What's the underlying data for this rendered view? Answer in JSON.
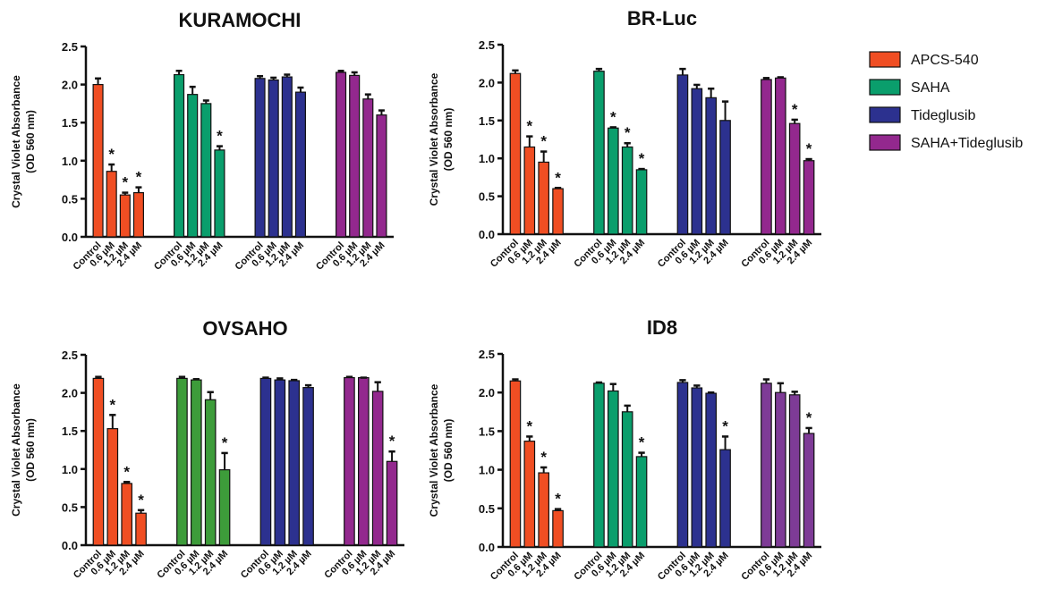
{
  "chart_data": [
    {
      "type": "bar",
      "title": "KURAMOCHI",
      "ylabel_line1": "Crystal Violet Absorbance",
      "ylabel_line2": "(OD 560 nm)",
      "ylim": [
        0,
        2.5
      ],
      "yticks": [
        "0.0",
        "0.5",
        "1.0",
        "1.5",
        "2.0",
        "2.5"
      ],
      "categories": [
        "Control",
        "0.6 µM",
        "1.2 µM",
        "2.4 µM"
      ],
      "series": [
        {
          "name": "APCS-540",
          "values": [
            2.0,
            0.86,
            0.55,
            0.58
          ],
          "errors": [
            0.08,
            0.09,
            0.03,
            0.07
          ],
          "significant": [
            false,
            true,
            true,
            true
          ]
        },
        {
          "name": "SAHA",
          "values": [
            2.13,
            1.87,
            1.75,
            1.14
          ],
          "errors": [
            0.05,
            0.1,
            0.04,
            0.05
          ],
          "significant": [
            false,
            false,
            false,
            true
          ]
        },
        {
          "name": "Tideglusib",
          "values": [
            2.08,
            2.06,
            2.1,
            1.9
          ],
          "errors": [
            0.03,
            0.03,
            0.03,
            0.06
          ],
          "significant": [
            false,
            false,
            false,
            false
          ]
        },
        {
          "name": "SAHA+Tideglusib",
          "values": [
            2.16,
            2.12,
            1.81,
            1.6
          ],
          "errors": [
            0.02,
            0.04,
            0.06,
            0.06
          ],
          "significant": [
            false,
            false,
            false,
            false
          ]
        }
      ]
    },
    {
      "type": "bar",
      "title": "BR-Luc",
      "ylabel_line1": "Crystal Violet Absorbance",
      "ylabel_line2": "(OD 560 nm)",
      "ylim": [
        0,
        2.5
      ],
      "yticks": [
        "0.0",
        "0.5",
        "1.0",
        "1.5",
        "2.0",
        "2.5"
      ],
      "categories": [
        "Control",
        "0.6 µM",
        "1.2 µM",
        "2.4 µM"
      ],
      "series": [
        {
          "name": "APCS-540",
          "values": [
            2.12,
            1.15,
            0.95,
            0.6
          ],
          "errors": [
            0.04,
            0.14,
            0.14,
            0.01
          ],
          "significant": [
            false,
            true,
            true,
            true
          ]
        },
        {
          "name": "SAHA",
          "values": [
            2.15,
            1.4,
            1.15,
            0.85
          ],
          "errors": [
            0.03,
            0.01,
            0.05,
            0.01
          ],
          "significant": [
            false,
            true,
            true,
            true
          ]
        },
        {
          "name": "Tideglusib",
          "values": [
            2.1,
            1.92,
            1.8,
            1.5
          ],
          "errors": [
            0.08,
            0.05,
            0.12,
            0.25
          ],
          "significant": [
            false,
            false,
            false,
            false
          ]
        },
        {
          "name": "SAHA+Tideglusib",
          "values": [
            2.04,
            2.06,
            1.46,
            0.97
          ],
          "errors": [
            0.02,
            0.01,
            0.05,
            0.02
          ],
          "significant": [
            false,
            false,
            true,
            true
          ]
        }
      ]
    },
    {
      "type": "bar",
      "title": "OVSAHO",
      "ylabel_line1": "Crystal Violet Absorbance",
      "ylabel_line2": "(OD 560 nm)",
      "ylim": [
        0,
        2.5
      ],
      "yticks": [
        "0.0",
        "0.5",
        "1.0",
        "1.5",
        "2.0",
        "2.5"
      ],
      "categories": [
        "Control",
        "0.6 µM",
        "1.2 µM",
        "2.4 µM"
      ],
      "series": [
        {
          "name": "APCS-540",
          "values": [
            2.19,
            1.53,
            0.81,
            0.42
          ],
          "errors": [
            0.02,
            0.18,
            0.02,
            0.04
          ],
          "significant": [
            false,
            true,
            true,
            true
          ]
        },
        {
          "name": "SAHA",
          "values": [
            2.19,
            2.17,
            1.91,
            0.99
          ],
          "errors": [
            0.02,
            0.01,
            0.1,
            0.22
          ],
          "significant": [
            false,
            false,
            false,
            true
          ]
        },
        {
          "name": "Tideglusib",
          "values": [
            2.19,
            2.17,
            2.16,
            2.07
          ],
          "errors": [
            0.01,
            0.02,
            0.01,
            0.03
          ],
          "significant": [
            false,
            false,
            false,
            false
          ]
        },
        {
          "name": "SAHA+Tideglusib",
          "values": [
            2.2,
            2.2,
            2.02,
            1.1
          ],
          "errors": [
            0.01,
            0.0,
            0.12,
            0.13
          ],
          "significant": [
            false,
            false,
            false,
            true
          ]
        }
      ]
    },
    {
      "type": "bar",
      "title": "ID8",
      "ylabel_line1": "Crystal Violet Absorbance",
      "ylabel_line2": "(OD 560 nm)",
      "ylim": [
        0,
        2.5
      ],
      "yticks": [
        "0.0",
        "0.5",
        "1.0",
        "1.5",
        "2.0",
        "2.5"
      ],
      "categories": [
        "Control",
        "0.6 µM",
        "1.2 µM",
        "2.4 µM"
      ],
      "series": [
        {
          "name": "APCS-540",
          "values": [
            2.15,
            1.37,
            0.96,
            0.47
          ],
          "errors": [
            0.02,
            0.06,
            0.07,
            0.02
          ],
          "significant": [
            false,
            true,
            true,
            true
          ]
        },
        {
          "name": "SAHA",
          "values": [
            2.12,
            2.02,
            1.75,
            1.17
          ],
          "errors": [
            0.01,
            0.09,
            0.08,
            0.05
          ],
          "significant": [
            false,
            false,
            false,
            true
          ]
        },
        {
          "name": "Tideglusib",
          "values": [
            2.13,
            2.06,
            1.99,
            1.26
          ],
          "errors": [
            0.03,
            0.03,
            0.01,
            0.17
          ],
          "significant": [
            false,
            false,
            false,
            true
          ]
        },
        {
          "name": "SAHA+Tideglusib",
          "values": [
            2.12,
            2.0,
            1.97,
            1.47
          ],
          "errors": [
            0.05,
            0.12,
            0.04,
            0.07
          ],
          "significant": [
            false,
            false,
            false,
            true
          ]
        }
      ]
    }
  ],
  "significance_marker": "*",
  "legend": {
    "placement": "right",
    "items": [
      {
        "label": "APCS-540",
        "color": "#f04e23"
      },
      {
        "label": "SAHA",
        "color": "#0a9e6c"
      },
      {
        "label": "Tideglusib",
        "color": "#2c318f"
      },
      {
        "label": "SAHA+Tideglusib",
        "color": "#93288e"
      }
    ]
  },
  "colors_by_panel": [
    [
      "#f04e23",
      "#0a9e6c",
      "#2c318f",
      "#93288e"
    ],
    [
      "#f04e23",
      "#0a9e6c",
      "#2c318f",
      "#93288e"
    ],
    [
      "#f04e23",
      "#3d9c3a",
      "#2c318f",
      "#93288e"
    ],
    [
      "#f04e23",
      "#0a9e6c",
      "#2c318f",
      "#7e3b96"
    ]
  ]
}
